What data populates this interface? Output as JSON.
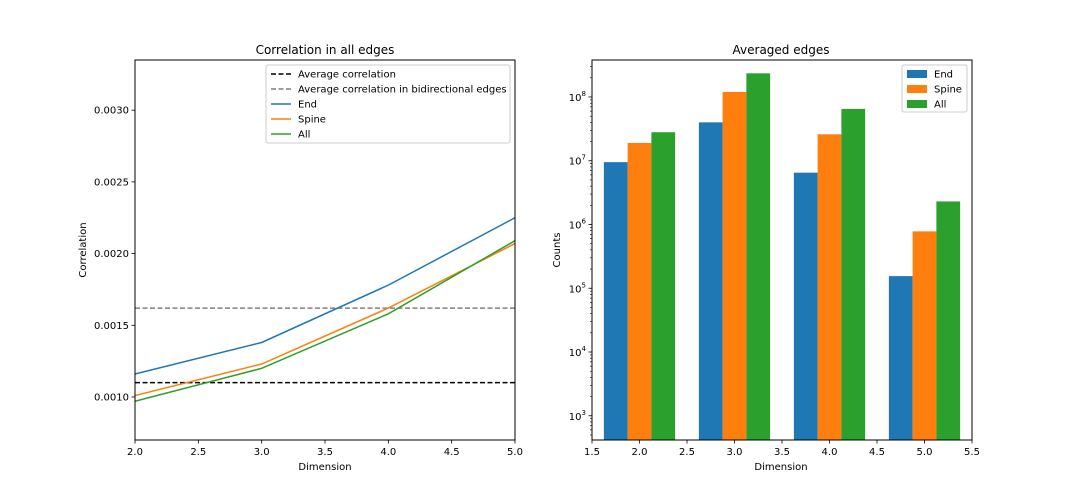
{
  "chart_data": [
    {
      "type": "line",
      "title": "Correlation in all edges",
      "xlabel": "Dimension",
      "ylabel": "Correlation",
      "xlim": [
        2.0,
        5.0
      ],
      "ylim": [
        0.0007,
        0.00335
      ],
      "xticks": [
        2.0,
        2.5,
        3.0,
        3.5,
        4.0,
        4.5,
        5.0
      ],
      "xtick_labels": [
        "2.0",
        "2.5",
        "3.0",
        "3.5",
        "4.0",
        "4.5",
        "5.0"
      ],
      "yticks": [
        0.001,
        0.0015,
        0.002,
        0.0025,
        0.003
      ],
      "ytick_labels": [
        "0.0010",
        "0.0015",
        "0.0020",
        "0.0025",
        "0.0030"
      ],
      "grid": false,
      "legend_position": "top-right",
      "hlines": [
        {
          "name": "Average correlation",
          "value": 0.0011,
          "color": "#000000",
          "dash": true
        },
        {
          "name": "Average correlation in bidirectional edges",
          "value": 0.00162,
          "color": "#808080",
          "dash": true
        }
      ],
      "x": [
        2,
        3,
        4,
        5
      ],
      "series": [
        {
          "name": "End",
          "color": "#1f77b4",
          "values": [
            0.00116,
            0.00138,
            0.00178,
            0.00225
          ]
        },
        {
          "name": "Spine",
          "color": "#ff7f0e",
          "values": [
            0.00101,
            0.00123,
            0.00162,
            0.00207
          ]
        },
        {
          "name": "All",
          "color": "#2ca02c",
          "values": [
            0.00097,
            0.0012,
            0.00158,
            0.00209
          ]
        }
      ]
    },
    {
      "type": "bar",
      "title": "Averaged edges",
      "xlabel": "Dimension",
      "ylabel": "Counts",
      "log_scale_y": true,
      "xlim": [
        1.5,
        5.5
      ],
      "ylim_exp": [
        2.62,
        8.58
      ],
      "xticks": [
        1.5,
        2.0,
        2.5,
        3.0,
        3.5,
        4.0,
        4.5,
        5.0,
        5.5
      ],
      "xtick_labels": [
        "1.5",
        "2.0",
        "2.5",
        "3.0",
        "3.5",
        "4.0",
        "4.5",
        "5.0",
        "5.5"
      ],
      "ytick_base": "10",
      "ytick_exponents": [
        "3",
        "4",
        "5",
        "6",
        "7",
        "8"
      ],
      "grid": false,
      "legend_position": "top-right",
      "categories": [
        2,
        3,
        4,
        5
      ],
      "bar_width": 0.25,
      "series": [
        {
          "name": "End",
          "color": "#1f77b4",
          "values": [
            9500000,
            40000000,
            6500000,
            155000
          ]
        },
        {
          "name": "Spine",
          "color": "#ff7f0e",
          "values": [
            19000000,
            120000000,
            26000000,
            780000
          ]
        },
        {
          "name": "All",
          "color": "#2ca02c",
          "values": [
            28000000,
            235000000,
            65000000,
            2300000
          ]
        }
      ]
    }
  ]
}
